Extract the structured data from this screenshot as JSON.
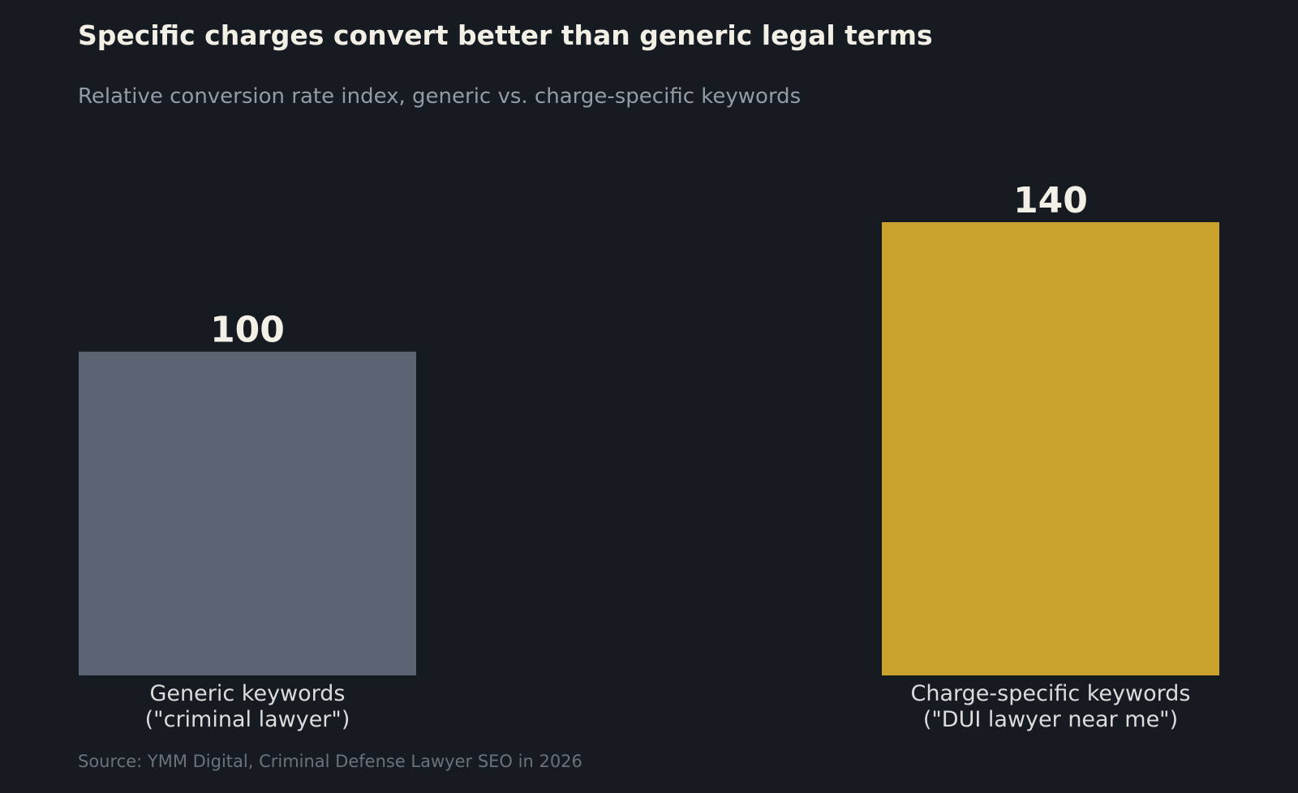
{
  "title": "Specific charges convert better than generic legal terms",
  "subtitle": "Relative conversion rate index, generic vs. charge-specific keywords",
  "source": "Source: YMM Digital, Criminal Defense Lawyer SEO in 2026",
  "colors": {
    "background": "#161a21",
    "text": "#f2efe6",
    "tick_text": "#dcdcdc"
  },
  "chart_data": {
    "type": "bar",
    "categories": [
      [
        "Generic keywords",
        "(\"criminal lawyer\")"
      ],
      [
        "Charge-specific keywords",
        "(\"DUI lawyer near me\")"
      ]
    ],
    "values": [
      100,
      140
    ],
    "data_labels": [
      "100",
      "140"
    ],
    "bar_colors": [
      "#5b6472",
      "#c9a22e"
    ],
    "ylim": [
      0,
      140
    ],
    "grid": false,
    "legend": false
  }
}
